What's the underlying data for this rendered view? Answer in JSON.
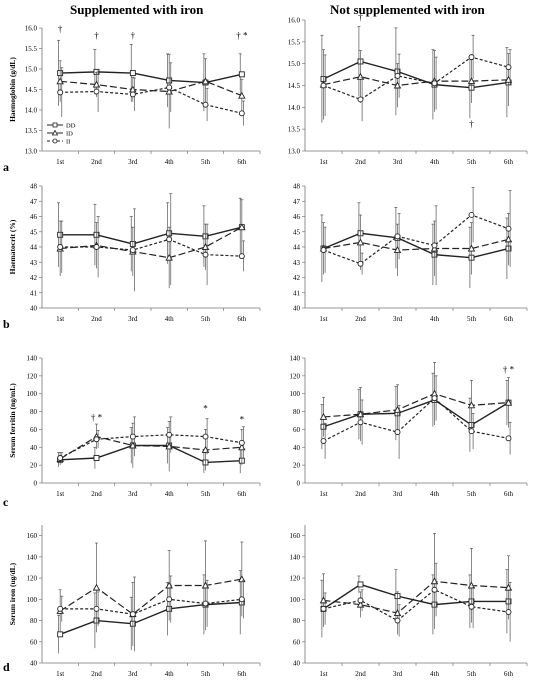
{
  "columns": [
    "Supplemented with iron",
    "Not supplemented with iron"
  ],
  "row_letters": [
    "a",
    "b",
    "c",
    "d"
  ],
  "legend_labels": [
    "DD",
    "ID",
    "II"
  ],
  "chart_data": [
    {
      "type": "line",
      "panel": "a-left",
      "categories": [
        "1st",
        "2nd",
        "3rd",
        "4th",
        "5th",
        "6th"
      ],
      "ylabel": "Haemoglobin (g/dL)",
      "ylim": [
        13.0,
        16.0
      ],
      "yticks": [
        "13.0",
        "13.5",
        "14.0",
        "14.5",
        "15.0",
        "15.5",
        "16.0"
      ],
      "series": [
        {
          "name": "DD",
          "values": [
            14.9,
            14.93,
            14.9,
            14.72,
            14.67,
            14.87
          ],
          "err": [
            0.8,
            0.55,
            0.7,
            0.65,
            0.7,
            0.5
          ]
        },
        {
          "name": "ID",
          "values": [
            14.7,
            14.62,
            14.5,
            14.45,
            14.7,
            14.35
          ],
          "err": [
            0.5,
            0.3,
            0.3,
            0.9,
            0.55,
            0.4
          ]
        },
        {
          "name": "II",
          "values": [
            14.43,
            14.45,
            14.38,
            14.55,
            14.13,
            13.92
          ],
          "err": [
            0.6,
            0.5,
            0.4,
            0.6,
            0.4,
            0.3
          ]
        }
      ],
      "annotations": [
        {
          "x": 0,
          "y": 15.9,
          "text": "†"
        },
        {
          "x": 1,
          "y": 15.75,
          "text": "†"
        },
        {
          "x": 2,
          "y": 15.75,
          "text": "†"
        },
        {
          "x": 5,
          "y": 15.75,
          "text": "† *"
        }
      ],
      "legend": "bottom-left"
    },
    {
      "type": "line",
      "panel": "a-right",
      "categories": [
        "1st",
        "2nd",
        "3rd",
        "4th",
        "5th",
        "6th"
      ],
      "ylabel": "",
      "ylim": [
        13.0,
        16.0
      ],
      "yticks": [
        "13.0",
        "13.5",
        "14.0",
        "14.5",
        "15.0",
        "15.5",
        "16.0"
      ],
      "series": [
        {
          "name": "DD",
          "values": [
            14.65,
            15.05,
            14.82,
            14.52,
            14.45,
            14.57
          ],
          "err": [
            1.0,
            0.8,
            1.0,
            0.8,
            0.7,
            0.8
          ]
        },
        {
          "name": "ID",
          "values": [
            14.52,
            14.7,
            14.5,
            14.6,
            14.6,
            14.63
          ],
          "err": [
            0.8,
            0.6,
            0.5,
            0.7,
            0.5,
            0.6
          ]
        },
        {
          "name": "II",
          "values": [
            14.5,
            14.18,
            14.72,
            14.55,
            15.15,
            14.92
          ],
          "err": [
            0.7,
            0.5,
            0.5,
            0.6,
            0.5,
            0.4
          ]
        }
      ],
      "annotations": [
        {
          "x": 1,
          "y": 16.0,
          "text": "†"
        },
        {
          "x": 4,
          "y": 13.55,
          "text": "†"
        }
      ]
    },
    {
      "type": "line",
      "panel": "b-left",
      "categories": [
        "1st",
        "2nd",
        "3rd",
        "4th",
        "5th",
        "6th"
      ],
      "ylabel": "Haematocrit (%)",
      "ylim": [
        40,
        48
      ],
      "yticks": [
        "40",
        "41",
        "42",
        "43",
        "44",
        "45",
        "46",
        "47",
        "48"
      ],
      "series": [
        {
          "name": "DD",
          "values": [
            44.8,
            44.8,
            44.2,
            44.9,
            44.7,
            45.3
          ],
          "err": [
            2.1,
            2.0,
            1.8,
            2.0,
            2.0,
            1.9
          ]
        },
        {
          "name": "ID",
          "values": [
            43.9,
            44.1,
            43.7,
            43.3,
            44.0,
            45.3
          ],
          "err": [
            1.8,
            1.5,
            1.6,
            2.0,
            1.5,
            1.8
          ]
        },
        {
          "name": "II",
          "values": [
            44.0,
            44.0,
            43.8,
            44.5,
            43.5,
            43.4
          ],
          "err": [
            1.7,
            2.0,
            2.7,
            3.0,
            2.0,
            1.0
          ]
        }
      ],
      "annotations": []
    },
    {
      "type": "line",
      "panel": "b-right",
      "categories": [
        "1st",
        "2nd",
        "3rd",
        "4th",
        "5th",
        "6th"
      ],
      "ylabel": "",
      "ylim": [
        40,
        48
      ],
      "yticks": [
        "40",
        "41",
        "42",
        "43",
        "44",
        "45",
        "46",
        "47",
        "48"
      ],
      "series": [
        {
          "name": "DD",
          "values": [
            43.9,
            44.9,
            44.6,
            43.5,
            43.3,
            43.9
          ],
          "err": [
            2.2,
            2.0,
            2.0,
            2.0,
            2.0,
            2.0
          ]
        },
        {
          "name": "ID",
          "values": [
            43.9,
            44.3,
            43.8,
            43.9,
            43.9,
            44.5
          ],
          "err": [
            1.7,
            1.8,
            1.7,
            1.8,
            1.7,
            1.7
          ]
        },
        {
          "name": "II",
          "values": [
            43.8,
            42.9,
            44.7,
            44.1,
            46.1,
            45.2
          ],
          "err": [
            1.5,
            0.7,
            1.5,
            2.6,
            1.8,
            2.5
          ]
        }
      ],
      "annotations": []
    },
    {
      "type": "line",
      "panel": "c-left",
      "categories": [
        "1st",
        "2nd",
        "3rd",
        "4th",
        "5th",
        "6th"
      ],
      "ylabel": "Serum ferritin (ng/mL)",
      "ylim": [
        0,
        140
      ],
      "yticks": [
        "0",
        "20",
        "40",
        "60",
        "80",
        "100",
        "120",
        "140"
      ],
      "series": [
        {
          "name": "DD",
          "values": [
            26,
            28,
            42,
            42,
            23,
            25
          ],
          "err": [
            8,
            12,
            20,
            20,
            12,
            14
          ]
        },
        {
          "name": "ID",
          "values": [
            27,
            52,
            42,
            41,
            37,
            40
          ],
          "err": [
            7,
            14,
            25,
            28,
            23,
            20
          ]
        },
        {
          "name": "II",
          "values": [
            28,
            49,
            52,
            54,
            52,
            45
          ],
          "err": [
            6,
            10,
            22,
            20,
            20,
            18
          ]
        }
      ],
      "annotations": [
        {
          "x": 1,
          "y": 70,
          "text": "† *"
        },
        {
          "x": 4,
          "y": 80,
          "text": "*"
        },
        {
          "x": 5,
          "y": 68,
          "text": "*"
        }
      ]
    },
    {
      "type": "line",
      "panel": "c-right",
      "categories": [
        "1st",
        "2nd",
        "3rd",
        "4th",
        "5th",
        "6th"
      ],
      "ylabel": "",
      "ylim": [
        0,
        140
      ],
      "yticks": [
        "0",
        "20",
        "40",
        "60",
        "80",
        "100",
        "120",
        "140"
      ],
      "series": [
        {
          "name": "DD",
          "values": [
            63,
            77,
            78,
            93,
            65,
            90
          ],
          "err": [
            25,
            28,
            30,
            30,
            30,
            25
          ]
        },
        {
          "name": "ID",
          "values": [
            74,
            77,
            82,
            100,
            87,
            90
          ],
          "err": [
            22,
            30,
            28,
            35,
            28,
            28
          ]
        },
        {
          "name": "II",
          "values": [
            47,
            68,
            57,
            95,
            58,
            50
          ],
          "err": [
            20,
            25,
            30,
            25,
            20,
            18
          ]
        }
      ],
      "annotations": [
        {
          "x": 5,
          "y": 124,
          "text": "† *"
        }
      ]
    },
    {
      "type": "line",
      "panel": "d-left",
      "categories": [
        "1st",
        "2nd",
        "3rd",
        "4th",
        "5th",
        "6th"
      ],
      "ylabel": "Serum iron (ug/dL)",
      "ylim": [
        40,
        170
      ],
      "yticks": [
        "40",
        "60",
        "80",
        "100",
        "120",
        "140",
        "160"
      ],
      "series": [
        {
          "name": "DD",
          "values": [
            67,
            80,
            77,
            91,
            95,
            97
          ],
          "err": [
            18,
            26,
            25,
            25,
            28,
            30
          ]
        },
        {
          "name": "ID",
          "values": [
            89,
            111,
            86,
            113,
            113,
            119
          ],
          "err": [
            20,
            42,
            30,
            33,
            42,
            35
          ]
        },
        {
          "name": "II",
          "values": [
            91,
            91,
            86,
            100,
            96,
            100
          ],
          "err": [
            12,
            16,
            35,
            22,
            22,
            18
          ]
        }
      ],
      "annotations": []
    },
    {
      "type": "line",
      "panel": "d-right",
      "categories": [
        "1st",
        "2nd",
        "3rd",
        "4th",
        "5th",
        "6th"
      ],
      "ylabel": "",
      "ylim": [
        40,
        170
      ],
      "yticks": [
        "40",
        "60",
        "80",
        "100",
        "120",
        "140",
        "160"
      ],
      "series": [
        {
          "name": "DD",
          "values": [
            91,
            114,
            103,
            95,
            98,
            98
          ],
          "err": [
            27,
            8,
            25,
            28,
            25,
            30
          ]
        },
        {
          "name": "ID",
          "values": [
            99,
            95,
            87,
            117,
            113,
            111
          ],
          "err": [
            25,
            12,
            20,
            45,
            35,
            30
          ]
        },
        {
          "name": "II",
          "values": [
            91,
            99,
            80,
            109,
            93,
            88
          ],
          "err": [
            15,
            10,
            15,
            25,
            20,
            28
          ]
        }
      ],
      "annotations": []
    }
  ]
}
